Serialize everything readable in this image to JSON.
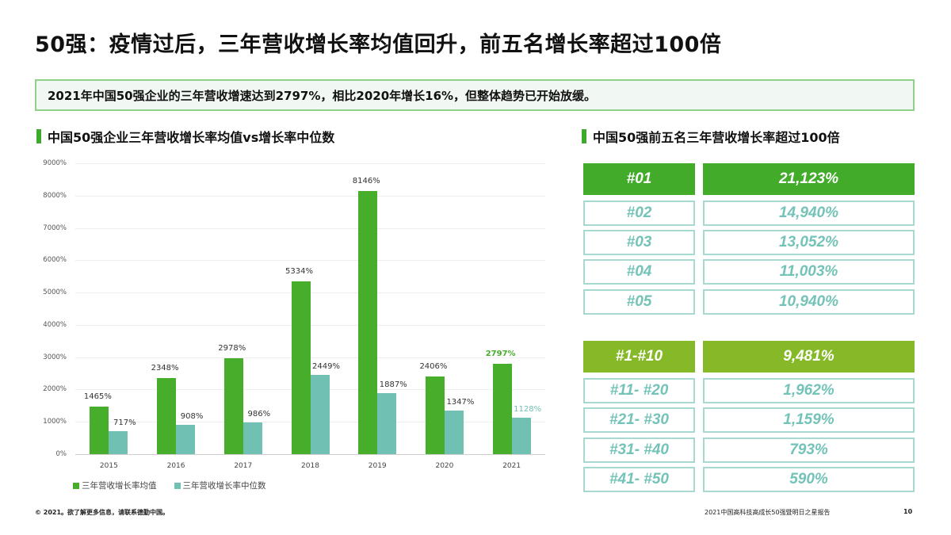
{
  "page": {
    "title": "50强：疫情过后，三年营收增长率均值回升，前五名增长率超过100倍",
    "summary": "2021年中国50强企业的三年营收增速达到2797%，相比2020年增长16%，但整体趋势已开始放缓。"
  },
  "left_section": {
    "title": "中国50强企业三年营收增长率均值vs增长率中位数"
  },
  "right_section": {
    "title": "中国50强前五名三年营收增长率超过100倍",
    "top5": [
      {
        "rank": "#01",
        "value": "21,123%"
      },
      {
        "rank": "#02",
        "value": "14,940%"
      },
      {
        "rank": "#03",
        "value": "13,052%"
      },
      {
        "rank": "#04",
        "value": "11,003%"
      },
      {
        "rank": "#05",
        "value": "10,940%"
      }
    ],
    "tiers": [
      {
        "rank": "#1-#10",
        "value": "9,481%"
      },
      {
        "rank": "#11- #20",
        "value": "1,962%"
      },
      {
        "rank": "#21- #30",
        "value": "1,159%"
      },
      {
        "rank": "#31- #40",
        "value": "793%"
      },
      {
        "rank": "#41- #50",
        "value": "590%"
      }
    ]
  },
  "chart_data": {
    "type": "bar",
    "title": "中国50强企业三年营收增长率均值vs增长率中位数",
    "xlabel": "",
    "ylabel": "",
    "categories": [
      "2015",
      "2016",
      "2017",
      "2018",
      "2019",
      "2020",
      "2021"
    ],
    "series": [
      {
        "name": "三年营收增长率均值",
        "color": "#46ae2b",
        "values": [
          1465,
          2348,
          2978,
          5334,
          8146,
          2406,
          2797
        ],
        "labels": [
          "1465%",
          "2348%",
          "2978%",
          "5334%",
          "8146%",
          "2406%",
          "2797%"
        ]
      },
      {
        "name": "三年营收增长率中位数",
        "color": "#71c0b4",
        "values": [
          717,
          908,
          986,
          2449,
          1887,
          1347,
          1128
        ],
        "labels": [
          "717%",
          "908%",
          "986%",
          "2449%",
          "1887%",
          "1347%",
          "1128%"
        ]
      }
    ],
    "y_ticks": [
      "0%",
      "1000%",
      "2000%",
      "3000%",
      "4000%",
      "5000%",
      "6000%",
      "7000%",
      "8000%",
      "9000%"
    ],
    "ylim": [
      0,
      9000
    ],
    "grid": true,
    "legend_position": "bottom-left",
    "highlight_category": "2021"
  },
  "footer": {
    "copyright": "© 2021。欲了解更多信息，请联系德勤中国。",
    "report": "2021中国高科技高成长50强暨明日之星报告",
    "page_number": "10"
  }
}
